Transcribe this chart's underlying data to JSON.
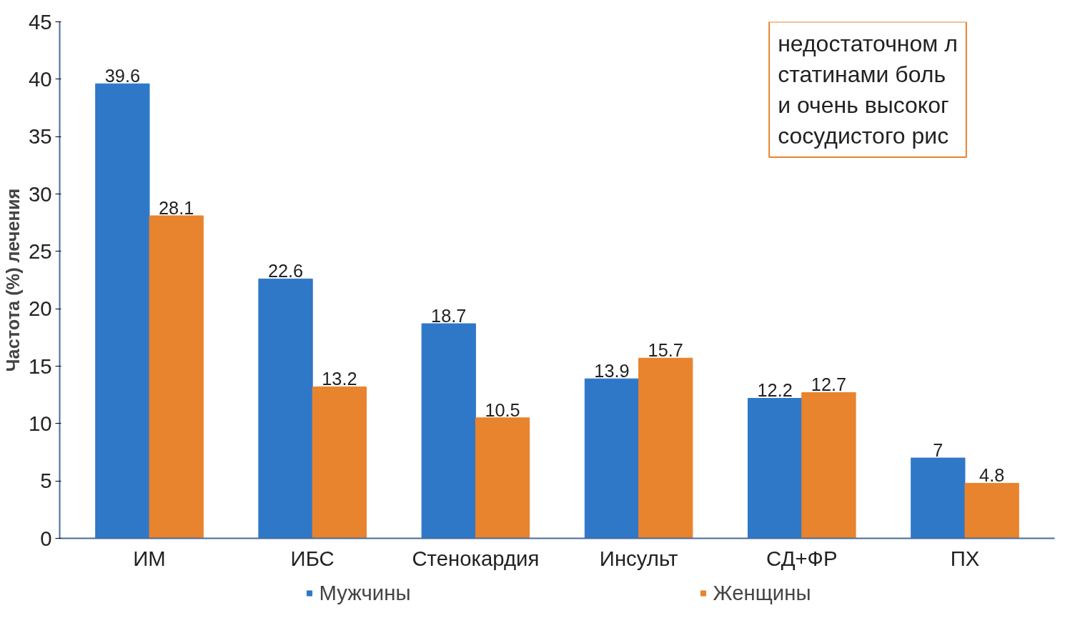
{
  "chart_data": {
    "type": "bar",
    "ylabel": "Частота (%) лечения",
    "categories": [
      "ИМ",
      "ИБС",
      "Стенокардия",
      "Инсульт",
      "СД+ФР",
      "ПХ"
    ],
    "series": [
      {
        "name": "Мужчины",
        "color": "#2f78c8",
        "values": [
          39.6,
          22.6,
          18.7,
          13.9,
          12.2,
          7
        ]
      },
      {
        "name": "Женщины",
        "color": "#e8832e",
        "values": [
          28.1,
          13.2,
          10.5,
          15.7,
          12.7,
          4.8
        ]
      }
    ],
    "ylim": [
      0,
      45
    ],
    "yticks": [
      0,
      5,
      10,
      15,
      20,
      25,
      30,
      35,
      40,
      45
    ],
    "data_labels": true,
    "grid": false,
    "legend": "bottom",
    "annotations": [
      "недостаточном л\nстатинами боль\nи очень высоког\nсосудистого рис"
    ]
  }
}
